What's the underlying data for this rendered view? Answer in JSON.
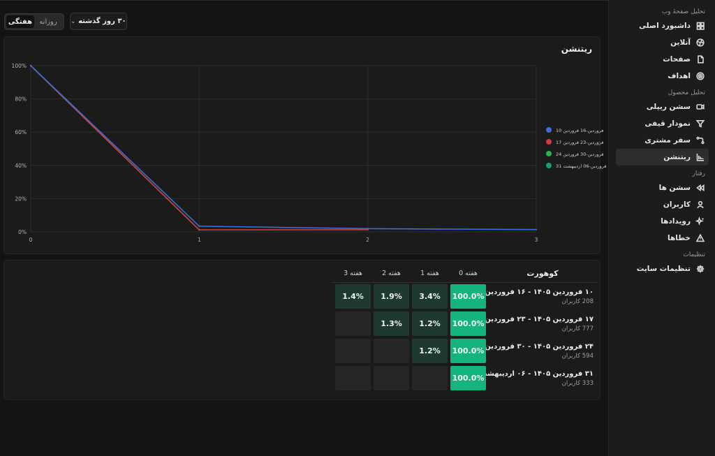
{
  "controls": {
    "range_label": "۳۰ روز گذشته",
    "granularity_options": [
      {
        "label": "روزانه",
        "active": false
      },
      {
        "label": "هفتگی",
        "active": true
      }
    ]
  },
  "sidebar": {
    "sections": [
      {
        "title": "تحلیل صفحهٔ وب",
        "items": [
          {
            "label": "داشبورد اصلی",
            "icon": "dashboard-icon"
          },
          {
            "label": "آنلاین",
            "icon": "globe-icon"
          },
          {
            "label": "صفحات",
            "icon": "page-icon"
          },
          {
            "label": "اهداف",
            "icon": "target-icon"
          }
        ]
      },
      {
        "title": "تحلیل محصول",
        "items": [
          {
            "label": "سشن ریپلی",
            "icon": "video-icon"
          },
          {
            "label": "نمودار قیفی",
            "icon": "funnel-icon"
          },
          {
            "label": "سفر مشتری",
            "icon": "journey-icon"
          },
          {
            "label": "ریتنشن",
            "icon": "retention-icon",
            "active": true
          }
        ]
      },
      {
        "title": "رفتار",
        "items": [
          {
            "label": "سشن ها",
            "icon": "rewind-icon"
          },
          {
            "label": "کاربران",
            "icon": "user-icon"
          },
          {
            "label": "رویدادها",
            "icon": "sparkle-icon"
          },
          {
            "label": "خطاها",
            "icon": "warning-icon"
          }
        ]
      },
      {
        "title": "تنظیمات",
        "items": [
          {
            "label": "تنظیمات سایت",
            "icon": "gear-icon"
          }
        ]
      }
    ]
  },
  "chart": {
    "title": "ریتنشن"
  },
  "chart_data": {
    "type": "line",
    "x": [
      0,
      1,
      2,
      3
    ],
    "x_ticks": [
      "0",
      "1",
      "2",
      "3"
    ],
    "y_ticks": [
      "0%",
      "20%",
      "40%",
      "60%",
      "80%",
      "100%"
    ],
    "ylim": [
      0,
      100
    ],
    "grid": true,
    "legend_position": "right",
    "series": [
      {
        "name": "10 فروردین-16 فروردین",
        "color": "#3b6fd4",
        "values": [
          100,
          3.4,
          1.9,
          1.4
        ]
      },
      {
        "name": "17 فروردین-23 فروردین",
        "color": "#d33a3a",
        "values": [
          100,
          1.2,
          1.3,
          null
        ]
      },
      {
        "name": "24 فروردین-30 فروردین",
        "color": "#2bb34a",
        "values": [
          100,
          1.2,
          null,
          null
        ]
      },
      {
        "name": "31 فروردین-06 اردیبهشت",
        "color": "#1a9e6a",
        "values": [
          100,
          null,
          null,
          null
        ]
      }
    ]
  },
  "table": {
    "headers": {
      "cohort": "کوهورت",
      "weeks": [
        "هفته 0",
        "هفته 1",
        "هفته 2",
        "هفته 3"
      ]
    },
    "rows": [
      {
        "cohort": "۱۰ فروردین ۱۴۰۵ - ۱۶ فروردین ۱۴۰۵",
        "users": "208 کاربران",
        "cells": [
          "100.0%",
          "3.4%",
          "1.9%",
          "1.4%"
        ]
      },
      {
        "cohort": "۱۷ فروردین ۱۴۰۵ - ۲۳ فروردین ۱۴۰۵",
        "users": "777 کاربران",
        "cells": [
          "100.0%",
          "1.2%",
          "1.3%",
          ""
        ]
      },
      {
        "cohort": "۲۴ فروردین ۱۴۰۵ - ۳۰ فروردین ۱۴۰۵",
        "users": "594 کاربران",
        "cells": [
          "100.0%",
          "1.2%",
          "",
          ""
        ]
      },
      {
        "cohort": "۳۱ فروردین ۱۴۰۵ - ۰۶ اردیبهشت ۱۴۰۵",
        "users": "333 کاربران",
        "cells": [
          "100.0%",
          "",
          "",
          ""
        ]
      }
    ]
  }
}
